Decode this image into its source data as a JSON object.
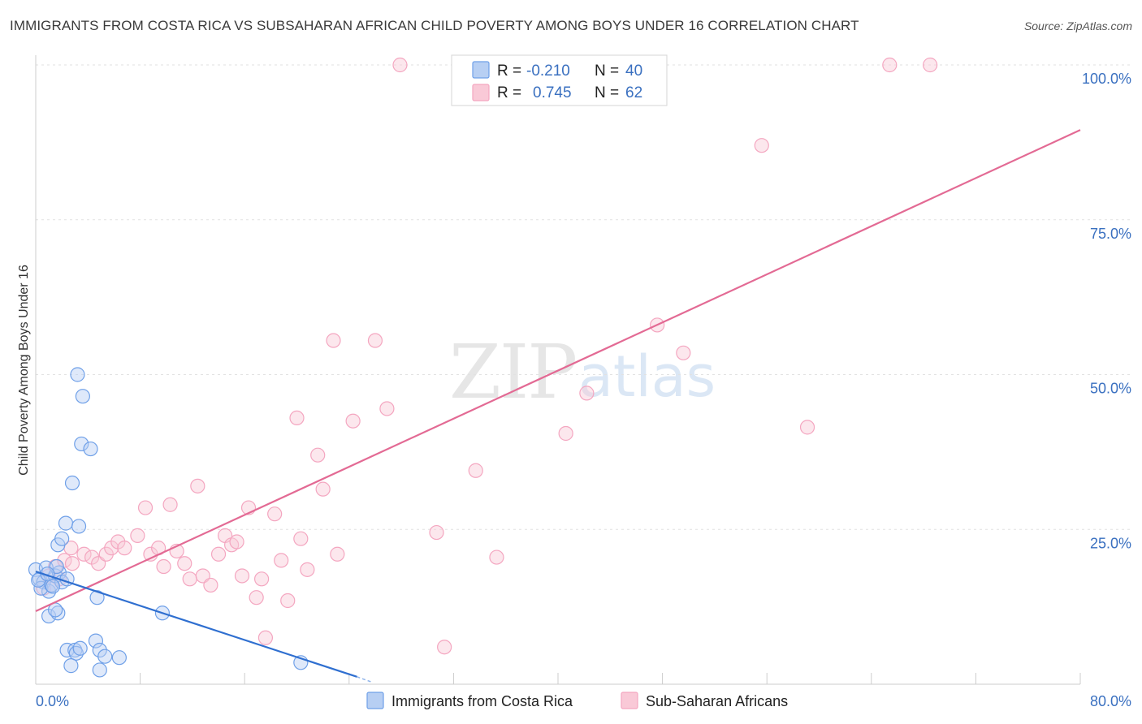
{
  "header": {
    "title": "IMMIGRANTS FROM COSTA RICA VS SUBSAHARAN AFRICAN CHILD POVERTY AMONG BOYS UNDER 16 CORRELATION CHART",
    "source": "Source: ZipAtlas.com"
  },
  "watermark": {
    "zip": "ZIP",
    "atlas": "atlas"
  },
  "legend": {
    "rows": [
      {
        "r_label": "R = ",
        "r_value": "-0.210",
        "n_label": "N = ",
        "n_value": "40"
      },
      {
        "r_label": "R = ",
        "r_value": "0.745",
        "n_label": "N = ",
        "n_value": "62"
      }
    ]
  },
  "chart_data": {
    "type": "scatter",
    "title": "IMMIGRANTS FROM COSTA RICA VS SUBSAHARAN AFRICAN CHILD POVERTY AMONG BOYS UNDER 16 CORRELATION CHART",
    "xlabel": "",
    "ylabel": "Child Poverty Among Boys Under 16",
    "xlim": [
      0,
      80
    ],
    "ylim": [
      0,
      100
    ],
    "x_tick_labels": [
      "0.0%",
      "80.0%"
    ],
    "y_ticks": [
      25,
      50,
      75,
      100
    ],
    "y_tick_labels": [
      "25.0%",
      "50.0%",
      "75.0%",
      "100.0%"
    ],
    "grid": true,
    "legend_position": "top-center",
    "series": [
      {
        "name": "Immigrants from Costa Rica",
        "color": "#6fa0e8",
        "line_color": "#2f6fd0",
        "trend": {
          "x": [
            0,
            24.6
          ],
          "y": [
            18.2,
            1.2
          ]
        },
        "trend_dashed": {
          "x": [
            24.6,
            25.8
          ],
          "y": [
            1.2,
            0.3
          ]
        },
        "points": [
          [
            0,
            18.5
          ],
          [
            0.3,
            17.0
          ],
          [
            0.6,
            16.5
          ],
          [
            0.8,
            18.8
          ],
          [
            1.0,
            15.0
          ],
          [
            0.4,
            15.5
          ],
          [
            1.2,
            16.0
          ],
          [
            1.5,
            17.5
          ],
          [
            1.8,
            18.0
          ],
          [
            2.0,
            16.5
          ],
          [
            1.6,
            19.0
          ],
          [
            2.4,
            17.0
          ],
          [
            1.0,
            11.0
          ],
          [
            1.7,
            11.5
          ],
          [
            1.5,
            12.0
          ],
          [
            1.7,
            22.5
          ],
          [
            2.0,
            23.5
          ],
          [
            2.3,
            26.0
          ],
          [
            3.3,
            25.5
          ],
          [
            2.8,
            32.5
          ],
          [
            3.5,
            38.8
          ],
          [
            4.2,
            38.0
          ],
          [
            3.2,
            50.0
          ],
          [
            3.6,
            46.5
          ],
          [
            4.7,
            14.0
          ],
          [
            2.4,
            5.5
          ],
          [
            3.0,
            5.5
          ],
          [
            3.1,
            5.0
          ],
          [
            3.4,
            5.8
          ],
          [
            2.7,
            3.0
          ],
          [
            4.6,
            7.0
          ],
          [
            4.9,
            5.5
          ],
          [
            5.3,
            4.5
          ],
          [
            6.4,
            4.3
          ],
          [
            4.9,
            2.3
          ],
          [
            9.7,
            11.5
          ],
          [
            20.3,
            3.5
          ],
          [
            0.2,
            16.8
          ],
          [
            0.9,
            17.8
          ],
          [
            1.3,
            15.8
          ]
        ]
      },
      {
        "name": "Sub-Saharan Africans",
        "color": "#f4a6c0",
        "line_color": "#e36a94",
        "trend": {
          "x": [
            0,
            80
          ],
          "y": [
            11.8,
            89.5
          ]
        },
        "points": [
          [
            1.0,
            17.5
          ],
          [
            1.2,
            16.0
          ],
          [
            1.5,
            19.0
          ],
          [
            1.8,
            17.0
          ],
          [
            2.2,
            20.0
          ],
          [
            2.8,
            19.5
          ],
          [
            2.7,
            22.0
          ],
          [
            3.7,
            21.0
          ],
          [
            4.3,
            20.5
          ],
          [
            4.8,
            19.5
          ],
          [
            5.4,
            21.0
          ],
          [
            5.8,
            22.0
          ],
          [
            6.3,
            23.0
          ],
          [
            6.8,
            22.0
          ],
          [
            7.8,
            24.0
          ],
          [
            8.4,
            28.5
          ],
          [
            8.8,
            21.0
          ],
          [
            9.4,
            22.0
          ],
          [
            9.8,
            19.0
          ],
          [
            10.3,
            29.0
          ],
          [
            10.8,
            21.5
          ],
          [
            11.4,
            19.5
          ],
          [
            11.8,
            17.0
          ],
          [
            12.4,
            32.0
          ],
          [
            12.8,
            17.5
          ],
          [
            13.4,
            16.0
          ],
          [
            14.0,
            21.0
          ],
          [
            14.5,
            24.0
          ],
          [
            15.0,
            22.5
          ],
          [
            15.4,
            23.0
          ],
          [
            15.8,
            17.5
          ],
          [
            16.3,
            28.5
          ],
          [
            16.9,
            14.0
          ],
          [
            17.3,
            17.0
          ],
          [
            17.6,
            7.5
          ],
          [
            18.3,
            27.5
          ],
          [
            18.8,
            20.0
          ],
          [
            19.3,
            13.5
          ],
          [
            20.0,
            43.0
          ],
          [
            20.3,
            23.5
          ],
          [
            20.8,
            18.5
          ],
          [
            21.6,
            37.0
          ],
          [
            22.0,
            31.5
          ],
          [
            22.8,
            55.5
          ],
          [
            23.1,
            21.0
          ],
          [
            24.3,
            42.5
          ],
          [
            26.0,
            55.5
          ],
          [
            26.9,
            44.5
          ],
          [
            27.9,
            100
          ],
          [
            30.7,
            24.5
          ],
          [
            31.3,
            6.0
          ],
          [
            33.7,
            34.5
          ],
          [
            35.3,
            20.5
          ],
          [
            40.6,
            40.5
          ],
          [
            42.2,
            47.0
          ],
          [
            47.6,
            58.0
          ],
          [
            49.6,
            53.5
          ],
          [
            55.6,
            87.0
          ],
          [
            59.1,
            41.5
          ],
          [
            65.4,
            100
          ],
          [
            68.5,
            100
          ],
          [
            0.6,
            15.5
          ]
        ]
      }
    ]
  },
  "bottom_legend": {
    "items": [
      {
        "label": "Immigrants from Costa Rica",
        "color": "#b7cff3",
        "border": "#6fa0e8"
      },
      {
        "label": "Sub-Saharan Africans",
        "color": "#f9c9d7",
        "border": "#f4a6c0"
      }
    ]
  }
}
